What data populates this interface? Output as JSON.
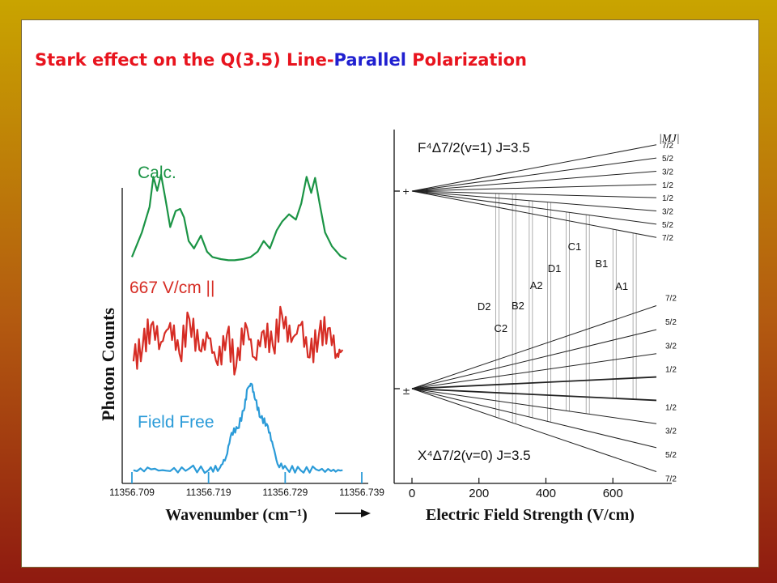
{
  "slide": {
    "title_parts": [
      {
        "text": "Stark effect on the Q(3.5) Line-",
        "color": "#e8141e"
      },
      {
        "text": "Parallel",
        "color": "#2020d0"
      },
      {
        "text": " Polarization",
        "color": "#e8141e"
      }
    ]
  },
  "colors": {
    "calc": "#1b9445",
    "field667": "#d62d25",
    "fieldfree": "#2b9bd8",
    "axis": "#111111"
  },
  "chart_data": [
    {
      "type": "line",
      "xlabel": "Wavenumber (cm⁻¹)",
      "ylabel": "Photon Counts",
      "x_ticks": [
        "11356.709",
        "11356.719",
        "11356.729",
        "11356.739"
      ],
      "xlim": [
        11356.709,
        11356.739
      ],
      "series": [
        {
          "name": "Calc.",
          "color": "#1b9445",
          "x": [
            11356.709,
            11356.7103,
            11356.7113,
            11356.7118,
            11356.7123,
            11356.7128,
            11356.7134,
            11356.714,
            11356.7147,
            11356.7153,
            11356.7158,
            11356.7164,
            11356.7171,
            11356.718,
            11356.7188,
            11356.7195,
            11356.7206,
            11356.7216,
            11356.7224,
            11356.7235,
            11356.7245,
            11356.7254,
            11356.7262,
            11356.727,
            11356.7279,
            11356.7286,
            11356.7295,
            11356.7304,
            11356.7311,
            11356.7318,
            11356.7324,
            11356.7329,
            11356.7335,
            11356.7342,
            11356.7351,
            11356.7362,
            11356.737
          ],
          "y": [
            0.05,
            0.28,
            0.52,
            0.8,
            0.67,
            0.82,
            0.58,
            0.33,
            0.48,
            0.5,
            0.42,
            0.2,
            0.13,
            0.25,
            0.1,
            0.05,
            0.03,
            0.02,
            0.02,
            0.03,
            0.05,
            0.1,
            0.2,
            0.13,
            0.3,
            0.38,
            0.45,
            0.4,
            0.55,
            0.8,
            0.65,
            0.79,
            0.55,
            0.28,
            0.15,
            0.06,
            0.03
          ]
        },
        {
          "name": "667 V/cm ||",
          "color": "#d62d25",
          "x": [
            11356.7092,
            11356.7104,
            11356.7115,
            11356.7128,
            11356.714,
            11356.7152,
            11356.7165,
            11356.7178,
            11356.719,
            11356.7202,
            11356.7214,
            11356.7226,
            11356.7238,
            11356.725,
            11356.7262,
            11356.7274,
            11356.7286,
            11356.7298,
            11356.731,
            11356.7322,
            11356.7334,
            11356.7346,
            11356.7358,
            11356.7365
          ],
          "y": [
            0.25,
            0.45,
            0.72,
            0.5,
            0.75,
            0.35,
            0.8,
            0.4,
            0.55,
            0.2,
            0.6,
            0.18,
            0.75,
            0.3,
            0.65,
            0.45,
            0.85,
            0.5,
            0.72,
            0.3,
            0.6,
            0.68,
            0.35,
            0.4
          ]
        },
        {
          "name": "Field Free",
          "color": "#2b9bd8",
          "x": [
            11356.7092,
            11356.7115,
            11356.714,
            11356.7165,
            11356.719,
            11356.7205,
            11356.7213,
            11356.722,
            11356.7228,
            11356.7236,
            11356.7241,
            11356.7246,
            11356.7251,
            11356.7258,
            11356.7266,
            11356.7273,
            11356.728,
            11356.7292,
            11356.731,
            11356.733,
            11356.735,
            11356.7365
          ],
          "y": [
            0.03,
            0.04,
            0.02,
            0.05,
            0.03,
            0.06,
            0.18,
            0.45,
            0.5,
            0.7,
            0.95,
            1.0,
            0.82,
            0.62,
            0.55,
            0.35,
            0.1,
            0.05,
            0.03,
            0.04,
            0.02,
            0.03
          ]
        }
      ]
    },
    {
      "type": "line",
      "xlabel": "Electric Field Strength (V/cm)",
      "x_ticks": [
        0,
        200,
        400,
        600
      ],
      "xlim": [
        0,
        730
      ],
      "upper_state": "F⁴Δ7/2(v=1) J=3.5",
      "lower_state": "X⁴Δ7/2(v=0) J=3.5",
      "mj_header": "|MJ|",
      "upper_mj": [
        "7/2",
        "5/2",
        "3/2",
        "1/2",
        "1/2",
        "3/2",
        "5/2",
        "7/2"
      ],
      "lower_mj": [
        "7/2",
        "5/2",
        "3/2",
        "1/2",
        "1/2",
        "3/2",
        "5/2",
        "7/2"
      ],
      "upper_slopes": [
        0.7,
        0.5,
        0.3,
        0.1,
        -0.1,
        -0.3,
        -0.5,
        -0.7
      ],
      "lower_slopes": [
        1.35,
        0.96,
        0.57,
        0.19,
        -0.19,
        -0.57,
        -0.96,
        -1.35
      ],
      "transitions": [
        {
          "label": "D2",
          "field": 255
        },
        {
          "label": "C2",
          "field": 305
        },
        {
          "label": "B2",
          "field": 355
        },
        {
          "label": "A2",
          "field": 410
        },
        {
          "label": "D1",
          "field": 465
        },
        {
          "label": "C1",
          "field": 525
        },
        {
          "label": "B1",
          "field": 605
        },
        {
          "label": "A1",
          "field": 665
        }
      ]
    }
  ]
}
